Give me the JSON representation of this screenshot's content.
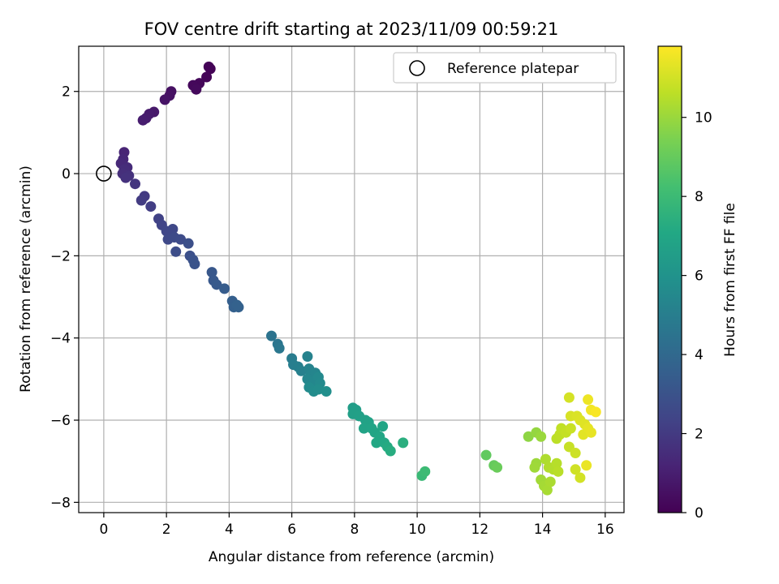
{
  "chart_data": {
    "type": "scatter",
    "title": "FOV centre drift starting at 2023/11/09 00:59:21",
    "xlabel": "Angular distance from reference (arcmin)",
    "ylabel": "Rotation from reference (arcmin)",
    "xlim": [
      -0.8,
      16.6
    ],
    "ylim": [
      -8.25,
      3.1
    ],
    "xticks": [
      0,
      2,
      4,
      6,
      8,
      10,
      12,
      14,
      16
    ],
    "yticks": [
      -8,
      -6,
      -4,
      -2,
      0,
      2
    ],
    "grid": true,
    "legend": {
      "placement": "top-right",
      "entries": [
        "Reference platepar"
      ]
    },
    "reference_point": {
      "x": 0,
      "y": 0
    },
    "colorbar": {
      "label": "Hours from first FF file",
      "colormap": "viridis",
      "range": [
        0,
        11.8
      ],
      "ticks": [
        0,
        2,
        4,
        6,
        8,
        10
      ]
    },
    "points": [
      {
        "x": 3.4,
        "y": 2.55,
        "c": 0.05
      },
      {
        "x": 3.35,
        "y": 2.6,
        "c": 0.1
      },
      {
        "x": 3.28,
        "y": 2.35,
        "c": 0.15
      },
      {
        "x": 3.05,
        "y": 2.2,
        "c": 0.2
      },
      {
        "x": 2.85,
        "y": 2.15,
        "c": 0.25
      },
      {
        "x": 2.95,
        "y": 2.05,
        "c": 0.3
      },
      {
        "x": 2.15,
        "y": 2.0,
        "c": 0.5
      },
      {
        "x": 2.1,
        "y": 1.9,
        "c": 0.55
      },
      {
        "x": 1.95,
        "y": 1.8,
        "c": 0.6
      },
      {
        "x": 1.6,
        "y": 1.5,
        "c": 0.8
      },
      {
        "x": 1.45,
        "y": 1.45,
        "c": 0.85
      },
      {
        "x": 1.35,
        "y": 1.35,
        "c": 0.9
      },
      {
        "x": 1.25,
        "y": 1.3,
        "c": 0.95
      },
      {
        "x": 0.65,
        "y": 0.52,
        "c": 1.2
      },
      {
        "x": 0.62,
        "y": 0.35,
        "c": 1.3
      },
      {
        "x": 0.55,
        "y": 0.25,
        "c": 1.35
      },
      {
        "x": 0.75,
        "y": 0.15,
        "c": 1.45
      },
      {
        "x": 0.65,
        "y": 0.1,
        "c": 1.5
      },
      {
        "x": 0.6,
        "y": 0.0,
        "c": 1.6
      },
      {
        "x": 0.8,
        "y": -0.05,
        "c": 1.65
      },
      {
        "x": 0.7,
        "y": -0.1,
        "c": 1.7
      },
      {
        "x": 1.0,
        "y": -0.25,
        "c": 1.85
      },
      {
        "x": 1.3,
        "y": -0.55,
        "c": 2.0
      },
      {
        "x": 1.2,
        "y": -0.65,
        "c": 2.05
      },
      {
        "x": 1.5,
        "y": -0.8,
        "c": 2.15
      },
      {
        "x": 1.75,
        "y": -1.1,
        "c": 2.3
      },
      {
        "x": 1.85,
        "y": -1.25,
        "c": 2.4
      },
      {
        "x": 2.0,
        "y": -1.4,
        "c": 2.5
      },
      {
        "x": 2.2,
        "y": -1.35,
        "c": 2.55
      },
      {
        "x": 2.05,
        "y": -1.6,
        "c": 2.6
      },
      {
        "x": 2.25,
        "y": -1.55,
        "c": 2.65
      },
      {
        "x": 2.45,
        "y": -1.6,
        "c": 2.7
      },
      {
        "x": 2.3,
        "y": -1.9,
        "c": 2.75
      },
      {
        "x": 2.7,
        "y": -1.7,
        "c": 2.85
      },
      {
        "x": 2.75,
        "y": -2.0,
        "c": 2.9
      },
      {
        "x": 2.85,
        "y": -2.1,
        "c": 2.95
      },
      {
        "x": 2.9,
        "y": -2.2,
        "c": 3.0
      },
      {
        "x": 3.45,
        "y": -2.4,
        "c": 3.2
      },
      {
        "x": 3.5,
        "y": -2.6,
        "c": 3.25
      },
      {
        "x": 3.6,
        "y": -2.7,
        "c": 3.3
      },
      {
        "x": 3.85,
        "y": -2.8,
        "c": 3.4
      },
      {
        "x": 4.1,
        "y": -3.1,
        "c": 3.55
      },
      {
        "x": 4.15,
        "y": -3.25,
        "c": 3.6
      },
      {
        "x": 4.3,
        "y": -3.25,
        "c": 3.65
      },
      {
        "x": 4.25,
        "y": -3.2,
        "c": 3.7
      },
      {
        "x": 5.35,
        "y": -3.95,
        "c": 4.5
      },
      {
        "x": 5.55,
        "y": -4.15,
        "c": 4.6
      },
      {
        "x": 5.6,
        "y": -4.25,
        "c": 4.65
      },
      {
        "x": 6.0,
        "y": -4.5,
        "c": 4.9
      },
      {
        "x": 6.05,
        "y": -4.65,
        "c": 5.0
      },
      {
        "x": 6.2,
        "y": -4.7,
        "c": 5.05
      },
      {
        "x": 6.3,
        "y": -4.8,
        "c": 5.1
      },
      {
        "x": 6.5,
        "y": -4.45,
        "c": 5.2
      },
      {
        "x": 6.55,
        "y": -4.75,
        "c": 5.25
      },
      {
        "x": 6.6,
        "y": -4.9,
        "c": 5.3
      },
      {
        "x": 6.75,
        "y": -4.85,
        "c": 5.35
      },
      {
        "x": 6.5,
        "y": -5.0,
        "c": 5.4
      },
      {
        "x": 6.7,
        "y": -5.05,
        "c": 5.45
      },
      {
        "x": 6.85,
        "y": -4.95,
        "c": 5.5
      },
      {
        "x": 6.9,
        "y": -5.1,
        "c": 5.55
      },
      {
        "x": 6.55,
        "y": -5.2,
        "c": 5.6
      },
      {
        "x": 6.7,
        "y": -5.3,
        "c": 5.65
      },
      {
        "x": 6.85,
        "y": -5.25,
        "c": 5.7
      },
      {
        "x": 7.1,
        "y": -5.3,
        "c": 5.8
      },
      {
        "x": 7.95,
        "y": -5.7,
        "c": 6.5
      },
      {
        "x": 8.05,
        "y": -5.75,
        "c": 6.55
      },
      {
        "x": 7.95,
        "y": -5.85,
        "c": 6.6
      },
      {
        "x": 8.15,
        "y": -5.9,
        "c": 6.65
      },
      {
        "x": 8.35,
        "y": -6.0,
        "c": 6.7
      },
      {
        "x": 8.45,
        "y": -6.05,
        "c": 6.75
      },
      {
        "x": 8.3,
        "y": -6.2,
        "c": 6.8
      },
      {
        "x": 8.55,
        "y": -6.2,
        "c": 6.85
      },
      {
        "x": 8.65,
        "y": -6.3,
        "c": 6.9
      },
      {
        "x": 8.9,
        "y": -6.15,
        "c": 6.95
      },
      {
        "x": 8.8,
        "y": -6.4,
        "c": 7.0
      },
      {
        "x": 8.7,
        "y": -6.55,
        "c": 7.05
      },
      {
        "x": 8.95,
        "y": -6.55,
        "c": 7.1
      },
      {
        "x": 9.05,
        "y": -6.65,
        "c": 7.2
      },
      {
        "x": 9.15,
        "y": -6.75,
        "c": 7.3
      },
      {
        "x": 9.55,
        "y": -6.55,
        "c": 7.4
      },
      {
        "x": 10.15,
        "y": -7.35,
        "c": 7.9
      },
      {
        "x": 10.25,
        "y": -7.25,
        "c": 8.0
      },
      {
        "x": 12.2,
        "y": -6.85,
        "c": 8.9
      },
      {
        "x": 12.45,
        "y": -7.1,
        "c": 9.0
      },
      {
        "x": 12.55,
        "y": -7.15,
        "c": 9.1
      },
      {
        "x": 13.55,
        "y": -6.4,
        "c": 9.8
      },
      {
        "x": 13.8,
        "y": -6.3,
        "c": 9.9
      },
      {
        "x": 13.95,
        "y": -6.4,
        "c": 10.0
      },
      {
        "x": 13.8,
        "y": -7.05,
        "c": 10.05
      },
      {
        "x": 13.75,
        "y": -7.15,
        "c": 10.1
      },
      {
        "x": 13.95,
        "y": -7.45,
        "c": 10.15
      },
      {
        "x": 14.05,
        "y": -7.6,
        "c": 10.2
      },
      {
        "x": 14.15,
        "y": -7.7,
        "c": 10.25
      },
      {
        "x": 14.25,
        "y": -7.5,
        "c": 10.3
      },
      {
        "x": 14.1,
        "y": -6.95,
        "c": 10.35
      },
      {
        "x": 14.2,
        "y": -7.15,
        "c": 10.4
      },
      {
        "x": 14.35,
        "y": -7.2,
        "c": 10.45
      },
      {
        "x": 14.45,
        "y": -7.05,
        "c": 10.5
      },
      {
        "x": 14.5,
        "y": -7.25,
        "c": 10.55
      },
      {
        "x": 14.45,
        "y": -6.45,
        "c": 10.6
      },
      {
        "x": 14.55,
        "y": -6.35,
        "c": 10.65
      },
      {
        "x": 14.6,
        "y": -6.2,
        "c": 10.7
      },
      {
        "x": 14.75,
        "y": -6.3,
        "c": 10.75
      },
      {
        "x": 14.85,
        "y": -6.65,
        "c": 10.8
      },
      {
        "x": 14.9,
        "y": -6.2,
        "c": 10.85
      },
      {
        "x": 15.05,
        "y": -6.8,
        "c": 10.9
      },
      {
        "x": 15.05,
        "y": -7.2,
        "c": 10.95
      },
      {
        "x": 15.2,
        "y": -7.4,
        "c": 11.0
      },
      {
        "x": 14.85,
        "y": -5.45,
        "c": 11.05
      },
      {
        "x": 14.9,
        "y": -5.9,
        "c": 11.1
      },
      {
        "x": 15.1,
        "y": -5.9,
        "c": 11.15
      },
      {
        "x": 15.2,
        "y": -6.0,
        "c": 11.2
      },
      {
        "x": 15.35,
        "y": -6.1,
        "c": 11.25
      },
      {
        "x": 15.3,
        "y": -6.35,
        "c": 11.3
      },
      {
        "x": 15.45,
        "y": -6.2,
        "c": 11.35
      },
      {
        "x": 15.55,
        "y": -6.3,
        "c": 11.4
      },
      {
        "x": 15.4,
        "y": -7.1,
        "c": 11.45
      },
      {
        "x": 15.45,
        "y": -5.5,
        "c": 11.5
      },
      {
        "x": 15.55,
        "y": -5.75,
        "c": 11.6
      },
      {
        "x": 15.7,
        "y": -5.8,
        "c": 11.7
      }
    ]
  }
}
